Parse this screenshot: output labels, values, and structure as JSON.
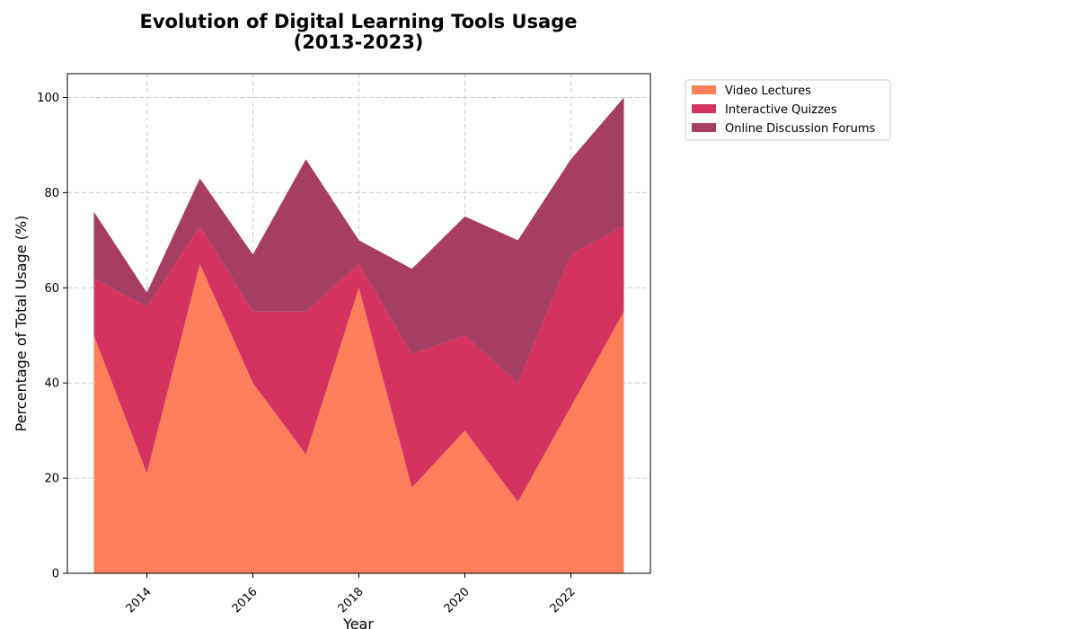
{
  "chart_data": {
    "type": "area",
    "stacked": true,
    "title_lines": [
      "Evolution of Digital Learning Tools Usage",
      "(2013-2023)"
    ],
    "xlabel": "Year",
    "ylabel": "Percentage of Total Usage (%)",
    "x": [
      2013,
      2014,
      2015,
      2016,
      2017,
      2018,
      2019,
      2020,
      2021,
      2022,
      2023
    ],
    "xlim": [
      2012.5,
      2023.5
    ],
    "ylim": [
      0,
      105
    ],
    "xticks": [
      2014,
      2016,
      2018,
      2020,
      2022
    ],
    "yticks": [
      0,
      20,
      40,
      60,
      80,
      100
    ],
    "grid": true,
    "legend_placement": "outside-top-right",
    "series": [
      {
        "name": "Video Lectures",
        "color": "#ff7f5c",
        "values": [
          50,
          21,
          65,
          40,
          25,
          60,
          18,
          30,
          15,
          35,
          55
        ]
      },
      {
        "name": "Interactive Quizzes",
        "color": "#d4325f",
        "values": [
          12,
          35,
          8,
          15,
          30,
          5,
          28,
          20,
          25,
          32,
          18
        ]
      },
      {
        "name": "Online Discussion Forums",
        "color": "#a63d62",
        "values": [
          14,
          3,
          10,
          12,
          32,
          5,
          18,
          25,
          30,
          20,
          27
        ]
      }
    ]
  }
}
